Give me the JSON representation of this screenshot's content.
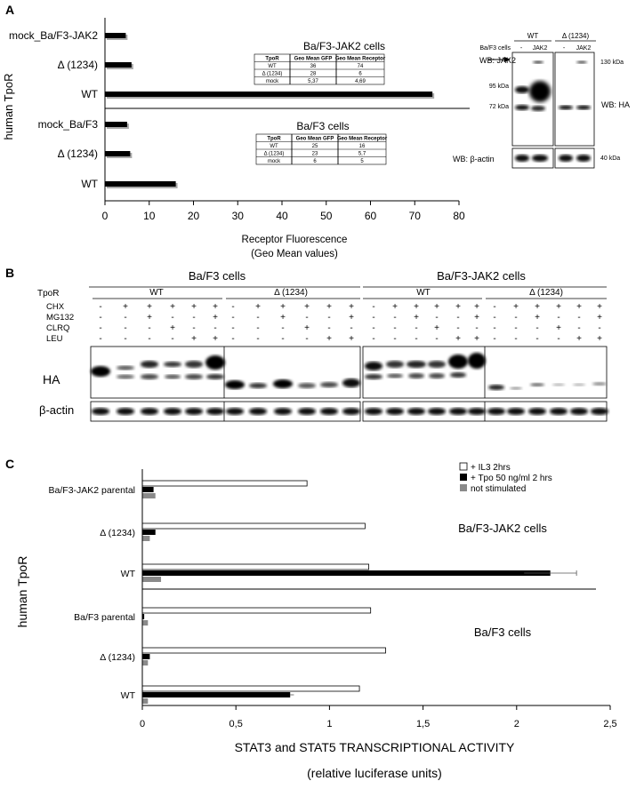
{
  "panelA": {
    "letter": "A",
    "ylabel": "human TpoR",
    "xlabel_line1": "Receptor Fluorescence",
    "xlabel_line2": "(Geo Mean values)",
    "xticks": [
      "0",
      "10",
      "20",
      "30",
      "40",
      "50",
      "60",
      "70",
      "80"
    ],
    "table_jak2": {
      "title": "Ba/F3-JAK2 cells",
      "header": [
        "TpoR",
        "Geo Mean GFP",
        "Geo Mean Receptor"
      ],
      "rows": [
        [
          "WT",
          "36",
          "74"
        ],
        [
          "Δ (1234)",
          "28",
          "6"
        ],
        [
          "mock",
          "5,37",
          "4,69"
        ]
      ]
    },
    "table_baf3": {
      "title": "Ba/F3 cells",
      "header": [
        "TpoR",
        "Geo Mean GFP",
        "Geo Mean Receptor"
      ],
      "rows": [
        [
          "WT",
          "25",
          "16"
        ],
        [
          "Δ (1234)",
          "23",
          "5,7"
        ],
        [
          "mock",
          "6",
          "5"
        ]
      ]
    },
    "wb": {
      "col_wt": "WT",
      "col_d": "Δ (1234)",
      "row_label": "Ba/F3 cells",
      "lane_minus": "-",
      "lane_jak2": "JAK2",
      "wb_jak2": "WB: JAK2",
      "wb_ha": "WB: HA",
      "wb_actin": "WB: β-actin",
      "kda130": "130 kDa",
      "kda95": "95 kDa",
      "kda72": "72 kDa",
      "kda40": "40 kDa"
    }
  },
  "panelB": {
    "letter": "B",
    "group1": "Ba/F3 cells",
    "group2": "Ba/F3-JAK2 cells",
    "tpor": "TpoR",
    "wt": "WT",
    "delta": "Δ (1234)",
    "treatments": [
      "CHX",
      "MG132",
      "CLRQ",
      "LEU"
    ],
    "signs": [
      [
        "-",
        "+",
        "+",
        "+",
        "+",
        "+"
      ],
      [
        "-",
        "-",
        "+",
        "-",
        "-",
        "+"
      ],
      [
        "-",
        "-",
        "-",
        "+",
        "-",
        "-"
      ],
      [
        "-",
        "-",
        "-",
        "-",
        "+",
        "+"
      ]
    ],
    "ha": "HA",
    "actin": "β-actin"
  },
  "panelC": {
    "letter": "C",
    "ylabel": "human TpoR",
    "xlabel_line1": "STAT3 and STAT5 TRANSCRIPTIONAL ACTIVITY",
    "xlabel_line2": "(relative luciferase units)",
    "group1_label": "Ba/F3-JAK2 cells",
    "group2_label": "Ba/F3 cells",
    "legend": [
      "+ IL3 2hrs",
      "+ Tpo 50 ng/ml 2 hrs",
      "not stimulated"
    ],
    "colors": {
      "il3": "#ffffff",
      "tpo": "#000000",
      "ns": "#8a8a8a"
    }
  },
  "chart_data": [
    {
      "type": "bar",
      "orientation": "horizontal",
      "categories": [
        "mock_Ba/F3-JAK2",
        "Δ (1234)",
        "WT",
        "mock_Ba/F3",
        "Δ (1234)",
        "WT"
      ],
      "values": [
        4.7,
        6,
        74,
        5,
        5.7,
        16
      ],
      "xlabel": "Receptor Fluorescence (Geo Mean values)",
      "ylabel": "human TpoR",
      "xlim": [
        0,
        80
      ]
    },
    {
      "type": "bar",
      "orientation": "horizontal",
      "categories": [
        "Ba/F3-JAK2 parental",
        "Δ (1234)",
        "WT",
        "Ba/F3  parental",
        "Δ (1234)",
        "WT"
      ],
      "series": [
        {
          "name": "+ IL3 2hrs",
          "values": [
            0.88,
            1.19,
            1.21,
            1.22,
            1.3,
            1.16
          ]
        },
        {
          "name": "+ Tpo 50 ng/ml 2 hrs",
          "values": [
            0.06,
            0.07,
            2.18,
            0.01,
            0.04,
            0.79
          ]
        },
        {
          "name": "not stimulated",
          "values": [
            0.07,
            0.04,
            0.1,
            0.03,
            0.03,
            0.03
          ]
        }
      ],
      "error": {
        "series": "+ Tpo 50 ng/ml 2 hrs",
        "category_index": 2,
        "value": 0.14
      },
      "xlabel": "STAT3 and STAT5 TRANSCRIPTIONAL ACTIVITY (relative luciferase units)",
      "ylabel": "human TpoR",
      "xlim": [
        0,
        2.5
      ],
      "xticks": [
        "0",
        "0,5",
        "1",
        "1,5",
        "2",
        "2,5"
      ]
    }
  ]
}
